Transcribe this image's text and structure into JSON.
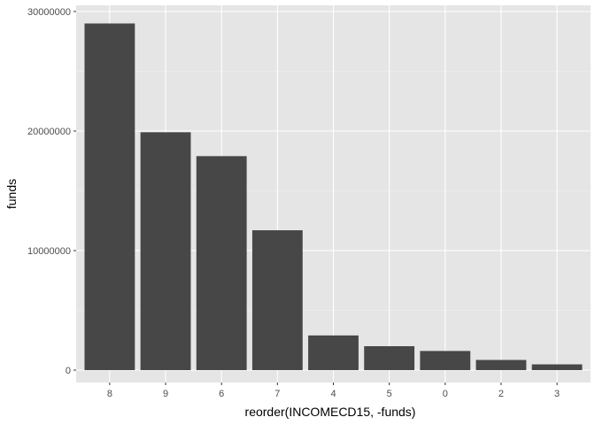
{
  "chart_data": {
    "type": "bar",
    "categories": [
      "8",
      "9",
      "6",
      "7",
      "4",
      "5",
      "0",
      "2",
      "3"
    ],
    "values": [
      29000000,
      19900000,
      17900000,
      11700000,
      2900000,
      2000000,
      1600000,
      850000,
      480000
    ],
    "xlabel": "reorder(INCOMECD15, -funds)",
    "ylabel": "funds",
    "ylim": [
      0,
      31500000
    ],
    "yticks": [
      0,
      10000000,
      20000000,
      30000000
    ],
    "ytick_labels": [
      "0",
      "10000000",
      "20000000",
      "30000000"
    ],
    "grid": true,
    "colors": {
      "panel_background": "#e5e5e5",
      "grid_major": "#ffffff",
      "grid_minor": "#f2f2f2",
      "bar_fill": "#474747",
      "tick_mark": "#333333"
    }
  }
}
